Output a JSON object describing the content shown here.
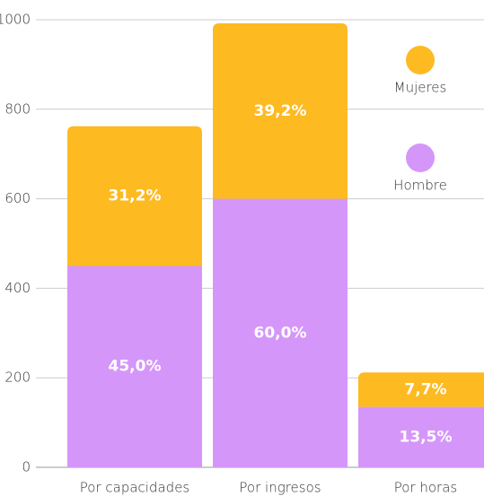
{
  "chart_data": {
    "type": "stacked_bar",
    "categories": [
      "Por capacidades",
      "Por ingresos",
      "Por horas"
    ],
    "series": [
      {
        "name": "Hombre",
        "color": "#d596f9",
        "values": [
          450,
          600,
          135
        ],
        "value_labels": [
          "45,0%",
          "60,0%",
          "13,5%"
        ]
      },
      {
        "name": "Mujeres",
        "color": "#fdba21",
        "values": [
          312,
          392,
          77
        ],
        "value_labels": [
          "31,2%",
          "39,2%",
          "7,7%"
        ]
      }
    ],
    "ylim": [
      0,
      1000
    ],
    "yticks": [
      0,
      200,
      400,
      600,
      800,
      1000
    ],
    "grid": true
  }
}
